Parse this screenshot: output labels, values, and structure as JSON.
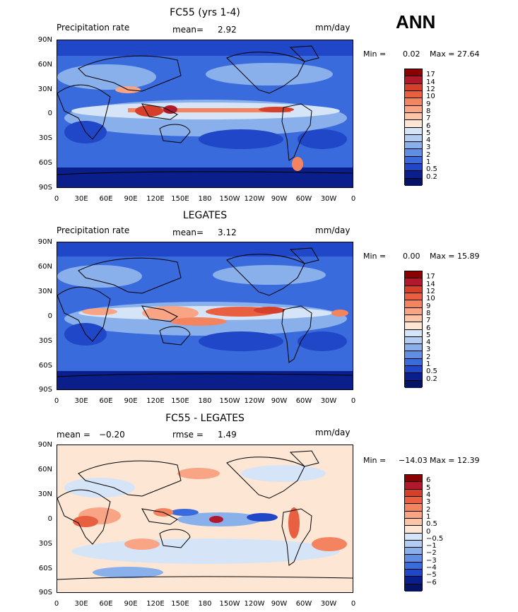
{
  "season": "ANN",
  "panels": [
    {
      "title": "FC55 (yrs 1-4)",
      "left_label": "Precipitation rate",
      "center_label": "mean=",
      "center_value": "2.92",
      "units": "mm/day",
      "min_label": "Min =",
      "min_value": "0.02",
      "max_label": "Max =",
      "max_value": "27.64",
      "colorbar": {
        "labels": [
          "17",
          "14",
          "12",
          "10",
          "9",
          "8",
          "7",
          "6",
          "5",
          "4",
          "3",
          "2",
          "1",
          "0.5",
          "0.2"
        ],
        "colors": [
          "#8b0000",
          "#b2182b",
          "#d6402b",
          "#e8603f",
          "#f4845f",
          "#f9a585",
          "#fcc5a8",
          "#fde6d3",
          "#d6e4f7",
          "#b3cdf2",
          "#8ab0ec",
          "#5f8ee4",
          "#3a6bdc",
          "#1f47c8",
          "#0a1f8c",
          "#061266"
        ]
      }
    },
    {
      "title": "LEGATES",
      "left_label": "Precipitation rate",
      "center_label": "mean=",
      "center_value": "3.12",
      "units": "mm/day",
      "min_label": "Min =",
      "min_value": "0.00",
      "max_label": "Max =",
      "max_value": "15.89",
      "colorbar": {
        "labels": [
          "17",
          "14",
          "12",
          "10",
          "9",
          "8",
          "7",
          "6",
          "5",
          "4",
          "3",
          "2",
          "1",
          "0.5",
          "0.2"
        ],
        "colors": [
          "#8b0000",
          "#b2182b",
          "#d6402b",
          "#e8603f",
          "#f4845f",
          "#f9a585",
          "#fcc5a8",
          "#fde6d3",
          "#d6e4f7",
          "#b3cdf2",
          "#8ab0ec",
          "#5f8ee4",
          "#3a6bdc",
          "#1f47c8",
          "#0a1f8c",
          "#061266"
        ]
      }
    },
    {
      "title": "FC55 - LEGATES",
      "left_label": "mean =",
      "left_value": "−0.20",
      "center_label": "rmse =",
      "center_value": "1.49",
      "units": "mm/day",
      "min_label": "Min =",
      "min_value": "−14.03",
      "max_label": "Max =",
      "max_value": "12.39",
      "colorbar": {
        "labels": [
          "6",
          "5",
          "4",
          "3",
          "2",
          "1",
          "0.5",
          "0",
          "−0.5",
          "−1",
          "−2",
          "−3",
          "−4",
          "−5",
          "−6"
        ],
        "colors": [
          "#8b0000",
          "#b2182b",
          "#d6402b",
          "#e8603f",
          "#f4845f",
          "#f9a585",
          "#fcc5a8",
          "#fde6d3",
          "#d6e4f7",
          "#b3cdf2",
          "#8ab0ec",
          "#5f8ee4",
          "#3a6bdc",
          "#1f47c8",
          "#0a1f8c",
          "#061266"
        ]
      }
    }
  ],
  "lat_ticks": [
    "90N",
    "60N",
    "30N",
    "0",
    "30S",
    "60S",
    "90S"
  ],
  "lon_ticks": [
    "0",
    "30E",
    "60E",
    "90E",
    "120E",
    "150E",
    "180",
    "150W",
    "120W",
    "90W",
    "60W",
    "30W",
    "0"
  ]
}
